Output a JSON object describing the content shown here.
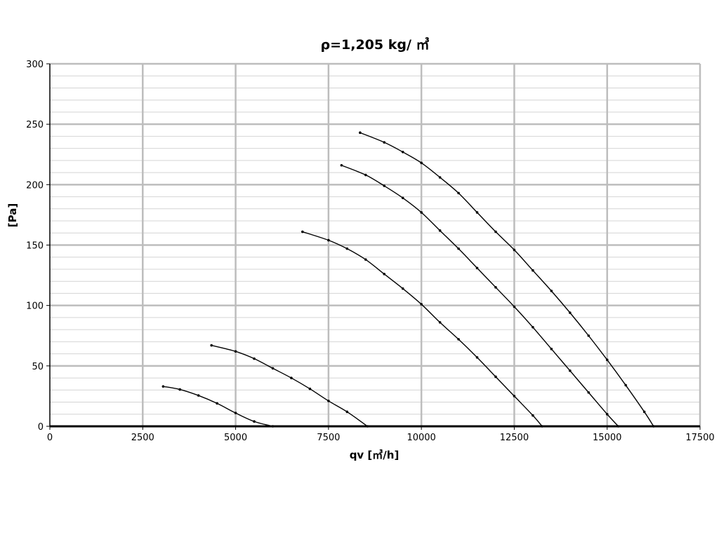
{
  "chart_data": {
    "type": "line",
    "title": "ρ=1,205 kg/ ㎥",
    "xlabel": "qv [㎥/h]",
    "ylabel": "[Pa]",
    "xlim": [
      0,
      17500
    ],
    "ylim": [
      0,
      300
    ],
    "x_ticks": [
      0,
      2500,
      5000,
      7500,
      10000,
      12500,
      15000,
      17500
    ],
    "y_ticks": [
      0,
      50,
      100,
      150,
      200,
      250,
      300
    ],
    "x_tick_labels": [
      "0",
      "2500",
      "5000",
      "7500",
      "10000",
      "12500",
      "15000",
      "17500"
    ],
    "y_tick_labels": [
      "0",
      "50",
      "100",
      "150",
      "200",
      "250",
      "300"
    ],
    "grid": true,
    "series": [
      {
        "x": [
          3050,
          3500,
          4000,
          4500,
          5000,
          5500,
          6000
        ],
        "y": [
          33,
          30.5,
          25.5,
          19,
          11,
          4,
          0
        ]
      },
      {
        "x": [
          4350,
          5000,
          5500,
          6000,
          6500,
          7000,
          7500,
          8000,
          8550
        ],
        "y": [
          67,
          62,
          56,
          48,
          40,
          31,
          21,
          12,
          0
        ]
      },
      {
        "x": [
          6800,
          7500,
          8000,
          8500,
          9000,
          9500,
          10000,
          10500,
          11000,
          11500,
          12000,
          12500,
          13000,
          13250
        ],
        "y": [
          161,
          154,
          147,
          138,
          126,
          114,
          101,
          86,
          72,
          57,
          41,
          25,
          9,
          0
        ]
      },
      {
        "x": [
          7850,
          8500,
          9000,
          9500,
          10000,
          10500,
          11000,
          11500,
          12000,
          12500,
          13000,
          13500,
          14000,
          14500,
          15000,
          15300
        ],
        "y": [
          216,
          208,
          199,
          189,
          177,
          162,
          147,
          131,
          115,
          99,
          82,
          64,
          46,
          28,
          10,
          0
        ]
      },
      {
        "x": [
          8350,
          9000,
          9500,
          10000,
          10500,
          11000,
          11500,
          12000,
          12500,
          13000,
          13500,
          14000,
          14500,
          15000,
          15500,
          16000,
          16250
        ],
        "y": [
          243,
          235,
          227,
          218,
          206,
          193,
          177,
          161,
          146,
          129,
          112,
          94,
          75,
          55,
          34,
          12,
          0
        ]
      }
    ]
  }
}
